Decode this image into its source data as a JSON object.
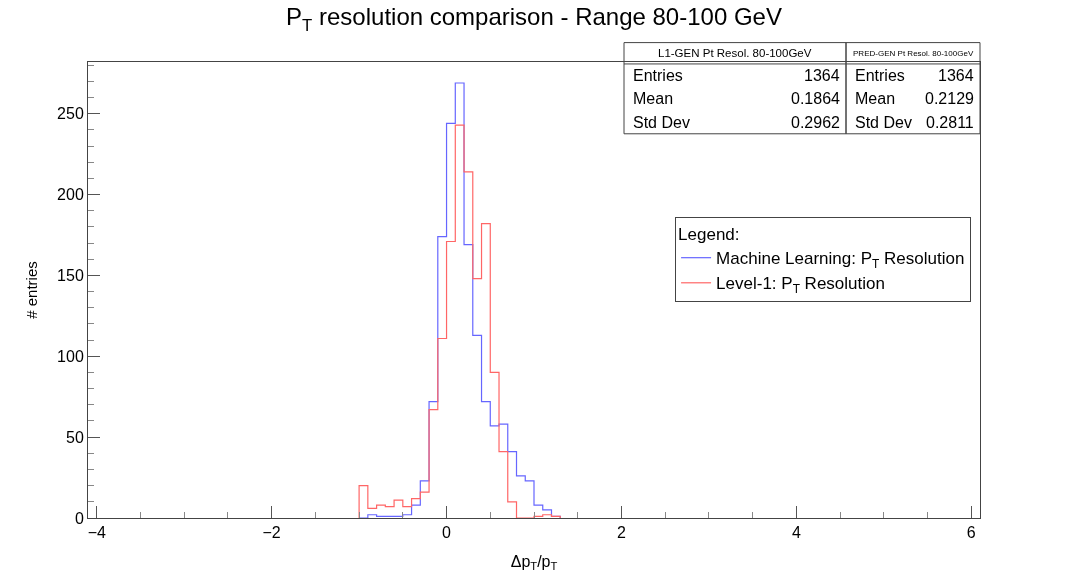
{
  "chart_data": {
    "type": "histogram",
    "title": "P$_{T}$ resolution comparison - Range 80-100 GeV",
    "xlabel": "Δp$_{T}$/p$_{T}$",
    "ylabel": "# entries",
    "legend_title": "Legend:",
    "bins": [
      -1.0,
      -0.9,
      -0.8,
      -0.7,
      -0.6,
      -0.5,
      -0.4,
      -0.3,
      -0.2,
      -0.1,
      0.0,
      0.1,
      0.2,
      0.3,
      0.4,
      0.5,
      0.6,
      0.7,
      0.8,
      0.9,
      1.0,
      1.1,
      1.2,
      1.3
    ],
    "series": [
      {
        "name": "Machine Learning: P$_{T}$ Resolution",
        "color": "#6666ff",
        "values": [
          0,
          2,
          1,
          1,
          1,
          2,
          8,
          23,
          72,
          174,
          244,
          269,
          169,
          113,
          72,
          57,
          58,
          41,
          26,
          23,
          8,
          5,
          1
        ]
      },
      {
        "name": "Level-1: P$_{T}$ Resolution",
        "color": "#ff6666",
        "values": [
          20,
          6,
          8,
          7,
          11,
          7,
          12,
          16,
          67,
          111,
          171,
          243,
          214,
          148,
          182,
          90,
          41,
          10,
          0,
          0,
          1,
          2,
          1
        ]
      }
    ],
    "xlim": [
      -4.1,
      6.1
    ],
    "xticks": [
      {
        "value": -4,
        "label": "−4"
      },
      {
        "value": -2,
        "label": "−2"
      },
      0,
      2,
      4,
      6
    ],
    "ylim": [
      0,
      282
    ],
    "yticks": [
      0,
      50,
      100,
      150,
      200,
      250
    ],
    "legend": "right",
    "annotations": [
      "L1-GEN Pt Resol. 80-100GeV",
      "Entries",
      "1364",
      "Mean",
      "0.1864",
      "Std Dev",
      "0.2962",
      "PRED-GEN Pt Resol. 80-100GeV",
      "Entries",
      "1364",
      "Mean",
      "0.2129",
      "Std Dev",
      "0.2811"
    ]
  }
}
